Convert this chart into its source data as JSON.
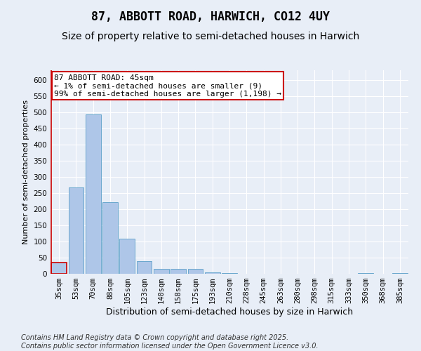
{
  "title": "87, ABBOTT ROAD, HARWICH, CO12 4UY",
  "subtitle": "Size of property relative to semi-detached houses in Harwich",
  "xlabel": "Distribution of semi-detached houses by size in Harwich",
  "ylabel": "Number of semi-detached properties",
  "categories": [
    "35sqm",
    "53sqm",
    "70sqm",
    "88sqm",
    "105sqm",
    "123sqm",
    "140sqm",
    "158sqm",
    "175sqm",
    "193sqm",
    "210sqm",
    "228sqm",
    "245sqm",
    "263sqm",
    "280sqm",
    "298sqm",
    "315sqm",
    "333sqm",
    "350sqm",
    "368sqm",
    "385sqm"
  ],
  "values": [
    35,
    268,
    493,
    222,
    108,
    40,
    16,
    15,
    16,
    5,
    2,
    1,
    1,
    0,
    0,
    0,
    0,
    0,
    2,
    0,
    2
  ],
  "bar_color": "#aec6e8",
  "bar_edge_color": "#5a9fc8",
  "highlight_bar_edge_color": "#cc0000",
  "annotation_text": "87 ABBOTT ROAD: 45sqm\n← 1% of semi-detached houses are smaller (9)\n99% of semi-detached houses are larger (1,198) →",
  "annotation_box_color": "#ffffff",
  "annotation_box_edge_color": "#cc0000",
  "ylim": [
    0,
    630
  ],
  "yticks": [
    0,
    50,
    100,
    150,
    200,
    250,
    300,
    350,
    400,
    450,
    500,
    550,
    600
  ],
  "background_color": "#e8eef7",
  "grid_color": "#ffffff",
  "footer_text": "Contains HM Land Registry data © Crown copyright and database right 2025.\nContains public sector information licensed under the Open Government Licence v3.0.",
  "title_fontsize": 12,
  "subtitle_fontsize": 10,
  "xlabel_fontsize": 9,
  "ylabel_fontsize": 8,
  "tick_fontsize": 7.5,
  "annotation_fontsize": 8,
  "footer_fontsize": 7
}
